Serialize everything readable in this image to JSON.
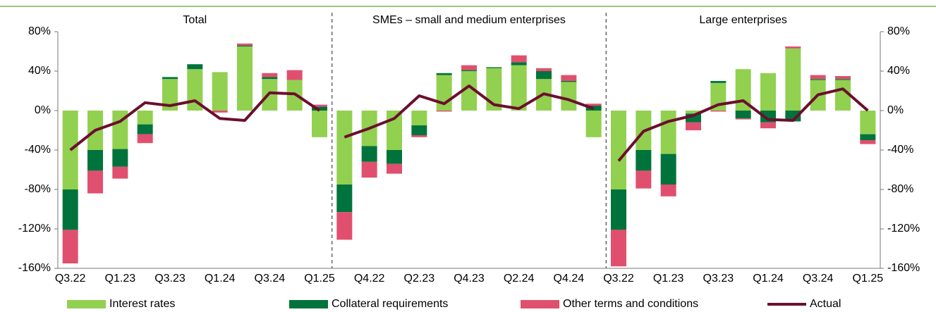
{
  "chart_data": [
    {
      "type": "bar",
      "stacked": true,
      "title": "Total",
      "categories": [
        "Q3.22",
        null,
        "Q1.23",
        null,
        "Q3.23",
        null,
        "Q1.24",
        null,
        "Q3.24",
        null,
        "Q1.25"
      ],
      "ylim": [
        -160,
        80
      ],
      "yticks": [
        {
          "value": 80,
          "label": "80%"
        },
        {
          "value": 40,
          "label": "40%"
        },
        {
          "value": 0,
          "label": "0%"
        },
        {
          "value": -40,
          "label": "-40%"
        },
        {
          "value": -80,
          "label": "-80%"
        },
        {
          "value": -120,
          "label": "-120%"
        },
        {
          "value": -160,
          "label": "-160%"
        }
      ],
      "legend": "bottom",
      "series": [
        {
          "name": "Interest rates",
          "color": "#92d050",
          "values": [
            -80,
            -40,
            -39,
            -14,
            32,
            42,
            39,
            65,
            32,
            31,
            -27
          ]
        },
        {
          "name": "Collateral requirements",
          "color": "#00733c",
          "values": [
            -41,
            -21,
            -18,
            -10,
            2,
            5,
            0,
            1,
            2,
            0,
            4
          ]
        },
        {
          "name": "Other terms and conditions",
          "color": "#e0506e",
          "values": [
            -34,
            -23,
            -12,
            -9,
            0,
            0,
            -2,
            2,
            4,
            10,
            2
          ]
        },
        {
          "name": "Actual",
          "type": "line",
          "color": "#6b0f2e",
          "values": [
            -40,
            -20,
            -11,
            8,
            5,
            10,
            -8,
            -10,
            18,
            17,
            0
          ]
        }
      ]
    },
    {
      "type": "bar",
      "stacked": true,
      "title": "SMEs – small and medium enterprises",
      "categories": [
        null,
        "Q4.22",
        null,
        "Q2.23",
        null,
        "Q4.23",
        null,
        "Q2.24",
        null,
        "Q4.24",
        null
      ],
      "ylim": [
        -160,
        80
      ],
      "series": [
        {
          "color": "#92d050",
          "values": [
            -75,
            -36,
            -40,
            -15,
            36,
            40,
            43,
            46,
            32,
            29,
            -27
          ]
        },
        {
          "color": "#00733c",
          "values": [
            -28,
            -16,
            -14,
            -10,
            2,
            1,
            1,
            3,
            8,
            1,
            5
          ]
        },
        {
          "color": "#e0506e",
          "values": [
            -28,
            -16,
            -10,
            -2,
            -1,
            5,
            0,
            7,
            3,
            6,
            2
          ]
        },
        {
          "type": "line",
          "color": "#6b0f2e",
          "values": [
            -27,
            -18,
            -8,
            15,
            7,
            25,
            6,
            2,
            17,
            11,
            2
          ]
        }
      ]
    },
    {
      "type": "bar",
      "stacked": true,
      "title": "Large enterprises",
      "categories": [
        "Q3.22",
        null,
        "Q1.23",
        null,
        "Q3.23",
        null,
        "Q1.24",
        null,
        "Q3.24",
        null,
        "Q1.25"
      ],
      "ylim": [
        -160,
        80
      ],
      "yticks": [
        {
          "value": 80,
          "label": "80%"
        },
        {
          "value": 40,
          "label": "40%"
        },
        {
          "value": 0,
          "label": "0%"
        },
        {
          "value": -40,
          "label": "-40%"
        },
        {
          "value": -80,
          "label": "-80%"
        },
        {
          "value": -120,
          "label": "-120%"
        },
        {
          "value": -160,
          "label": "-160%"
        }
      ],
      "series": [
        {
          "color": "#92d050",
          "values": [
            -80,
            -40,
            -44,
            -3,
            28,
            42,
            38,
            63,
            31,
            31,
            -24
          ]
        },
        {
          "color": "#00733c",
          "values": [
            -41,
            -21,
            -31,
            -9,
            2,
            -8,
            -12,
            -11,
            1,
            1,
            -6
          ]
        },
        {
          "color": "#e0506e",
          "values": [
            -37,
            -18,
            -12,
            -8,
            -1,
            -1,
            -6,
            2,
            4,
            3,
            -4
          ]
        },
        {
          "type": "line",
          "color": "#6b0f2e",
          "values": [
            -51,
            -21,
            -11,
            -5,
            6,
            10,
            -9,
            -10,
            16,
            22,
            0
          ]
        }
      ]
    }
  ]
}
